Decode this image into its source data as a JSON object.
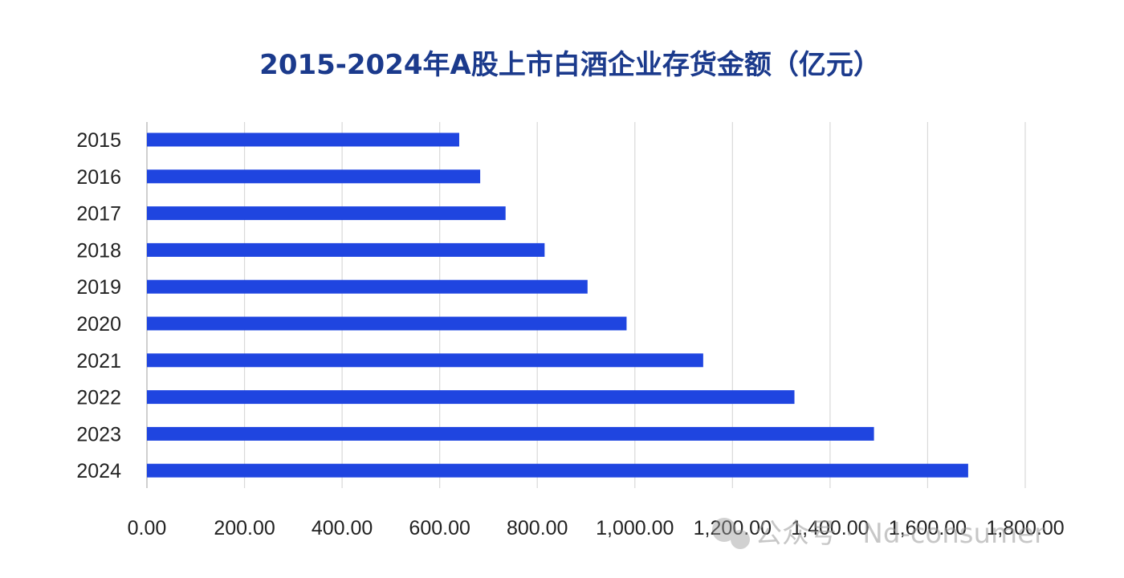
{
  "chart_data": {
    "type": "bar",
    "orientation": "horizontal",
    "title": "2015-2024年A股上市白酒企业存货金额（亿元）",
    "xlabel": "",
    "ylabel": "",
    "categories": [
      "2015",
      "2016",
      "2017",
      "2018",
      "2019",
      "2020",
      "2021",
      "2022",
      "2023",
      "2024"
    ],
    "values": [
      640,
      683,
      735,
      815,
      903,
      983,
      1140,
      1327,
      1490,
      1683
    ],
    "xlim": [
      0,
      1800
    ],
    "x_ticks": [
      "0.00",
      "200.00",
      "400.00",
      "600.00",
      "800.00",
      "1,000.00",
      "1,200.00",
      "1,400.00",
      "1,600.00",
      "1,800.00"
    ],
    "x_tick_values": [
      0,
      200,
      400,
      600,
      800,
      1000,
      1200,
      1400,
      1600,
      1800
    ],
    "grid": "vertical",
    "legend": "none"
  },
  "colors": {
    "bar": "#1f45e0",
    "title": "#1b3a8c",
    "grid": "#d9d9d9",
    "axis": "#bfbfbf"
  },
  "watermark": {
    "text": "公众号 · Nd-consumer",
    "icon": "wechat-icon"
  }
}
